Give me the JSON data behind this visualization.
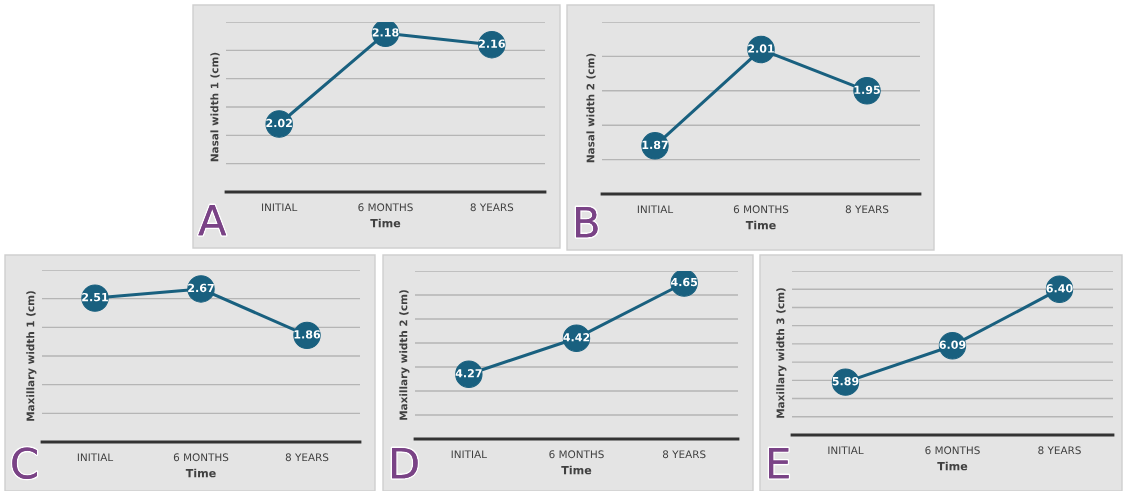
{
  "chart_data": [
    {
      "type": "line",
      "xlabel": "Time",
      "ylabel": "Nasal width 1 (cm)",
      "categories": [
        "INITIAL",
        "6 MONTHS",
        "8 YEARS"
      ],
      "series": [
        {
          "color": "#19607f",
          "values": [
            2.02,
            2.18,
            2.16
          ]
        }
      ],
      "ylim": [
        1.9,
        2.2
      ],
      "yticks": [
        {
          "value": 1.95,
          "label": null
        },
        {
          "value": 2.0,
          "label": null
        },
        {
          "value": 2.05,
          "label": null
        },
        {
          "value": 2.1,
          "label": null
        },
        {
          "value": 2.15,
          "label": null
        },
        {
          "value": 2.2,
          "label": null
        }
      ],
      "tick_labels": "x",
      "grid": "y",
      "marker": "circle",
      "line_style": "solid",
      "data_labels": true,
      "annotations": [
        "A"
      ]
    },
    {
      "type": "line",
      "xlabel": "Time",
      "ylabel": "Nasal width 2 (cm)",
      "categories": [
        "INITIAL",
        "6 MONTHS",
        "8 YEARS"
      ],
      "series": [
        {
          "color": "#19607f",
          "values": [
            1.87,
            2.01,
            1.95
          ]
        }
      ],
      "ylim": [
        1.8,
        2.05
      ],
      "yticks": [
        {
          "value": 1.85,
          "label": null
        },
        {
          "value": 1.9,
          "label": null
        },
        {
          "value": 1.95,
          "label": null
        },
        {
          "value": 2.0,
          "label": null
        },
        {
          "value": 2.05,
          "label": null
        }
      ],
      "tick_labels": "x",
      "grid": "y",
      "marker": "circle",
      "line_style": "solid",
      "data_labels": true,
      "annotations": [
        "B"
      ]
    },
    {
      "type": "line",
      "xlabel": "Time",
      "ylabel": "Maxillary width 1 (cm)",
      "categories": [
        "INITIAL",
        "6 MONTHS",
        "8 YEARS"
      ],
      "series": [
        {
          "color": "#19607f",
          "values": [
            2.51,
            2.67,
            1.86
          ]
        }
      ],
      "ylim": [
        0,
        3
      ],
      "yticks": [
        {
          "value": 0.5,
          "label": null
        },
        {
          "value": 1.0,
          "label": null
        },
        {
          "value": 1.5,
          "label": null
        },
        {
          "value": 2.0,
          "label": null
        },
        {
          "value": 2.5,
          "label": null
        },
        {
          "value": 3.0,
          "label": null
        }
      ],
      "tick_labels": "x",
      "grid": "y",
      "marker": "circle",
      "line_style": "solid",
      "data_labels": true,
      "annotations": [
        "C"
      ]
    },
    {
      "type": "line",
      "xlabel": "Time",
      "ylabel": "Maxillary width 2 (cm)",
      "categories": [
        "INITIAL",
        "6 MONTHS",
        "8 YEARS"
      ],
      "series": [
        {
          "color": "#19607f",
          "values": [
            4.27,
            4.42,
            4.65
          ]
        }
      ],
      "ylim": [
        4.0,
        4.7
      ],
      "yticks": [
        {
          "value": 4.1,
          "label": null
        },
        {
          "value": 4.2,
          "label": null
        },
        {
          "value": 4.3,
          "label": null
        },
        {
          "value": 4.4,
          "label": null
        },
        {
          "value": 4.5,
          "label": null
        },
        {
          "value": 4.6,
          "label": null
        },
        {
          "value": 4.7,
          "label": null
        }
      ],
      "tick_labels": "x",
      "grid": "y",
      "marker": "circle",
      "line_style": "solid",
      "data_labels": true,
      "annotations": [
        "D"
      ]
    },
    {
      "type": "line",
      "xlabel": "Time",
      "ylabel": "Maxillary width 3 (cm)",
      "categories": [
        "INITIAL",
        "6 MONTHS",
        "8 YEARS"
      ],
      "series": [
        {
          "color": "#19607f",
          "values": [
            5.89,
            6.09,
            6.4
          ],
          "value_labels": [
            "5.89",
            "6.09",
            "6.40"
          ]
        }
      ],
      "ylim": [
        5.6,
        6.5
      ],
      "yticks": [
        {
          "value": 5.7,
          "label": null
        },
        {
          "value": 5.8,
          "label": null
        },
        {
          "value": 5.9,
          "label": null
        },
        {
          "value": 6.0,
          "label": null
        },
        {
          "value": 6.1,
          "label": null
        },
        {
          "value": 6.2,
          "label": null
        },
        {
          "value": 6.3,
          "label": null
        },
        {
          "value": 6.4,
          "label": null
        },
        {
          "value": 6.5,
          "label": null
        }
      ],
      "tick_labels": "x",
      "grid": "y",
      "marker": "circle",
      "line_style": "solid",
      "annotations": [
        "E"
      ]
    }
  ]
}
